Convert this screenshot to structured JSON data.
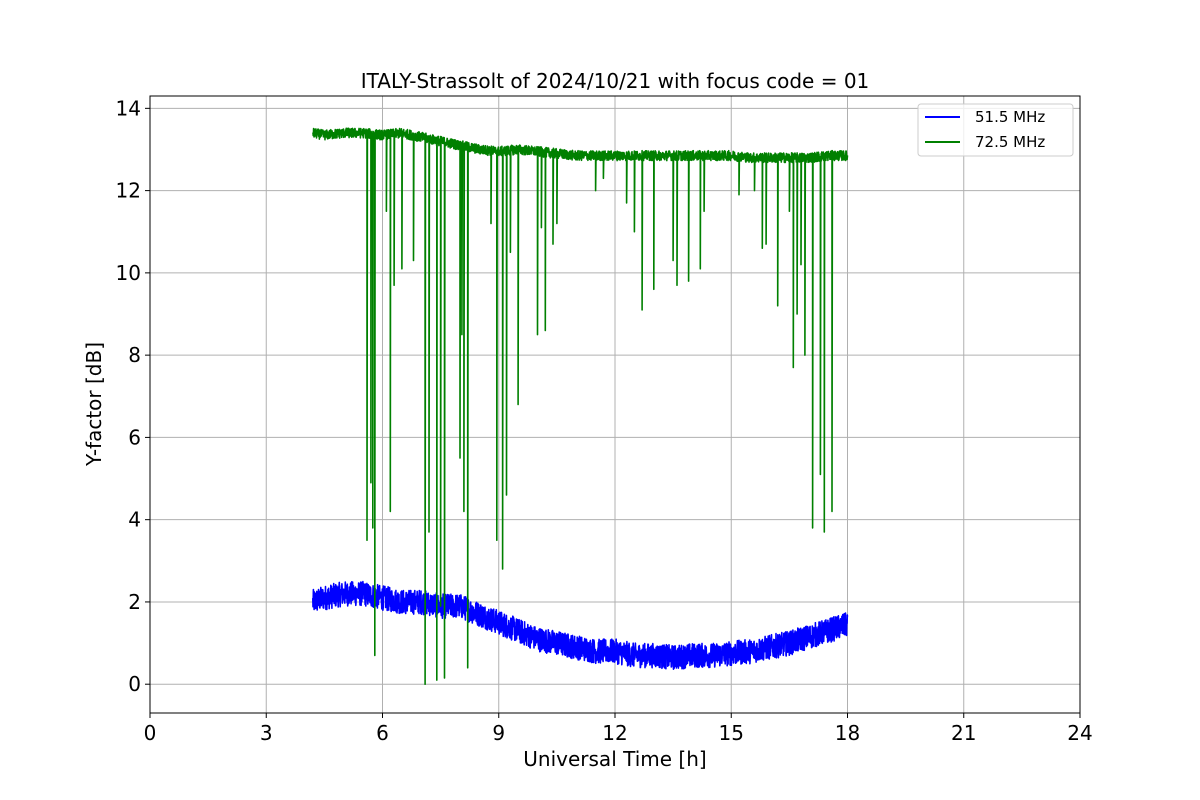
{
  "chart_data": {
    "type": "line",
    "title": "ITALY-Strassolt of 2024/10/21 with focus code = 01",
    "xlabel": "Universal Time [h]",
    "ylabel": "Y-factor [dB]",
    "xlim": [
      0,
      24
    ],
    "ylim": [
      -0.7,
      14.3
    ],
    "xticks": [
      0,
      3,
      6,
      9,
      12,
      15,
      18,
      21,
      24
    ],
    "yticks": [
      0,
      2,
      4,
      6,
      8,
      10,
      12,
      14
    ],
    "xtick_labels": [
      "0",
      "3",
      "6",
      "9",
      "12",
      "15",
      "18",
      "21",
      "24"
    ],
    "ytick_labels": [
      "0",
      "2",
      "4",
      "6",
      "8",
      "10",
      "12",
      "14"
    ],
    "grid": true,
    "legend": "top-right",
    "series": [
      {
        "name": "  51.5 MHz",
        "color": "#0000ff",
        "x": [
          4.2,
          4.5,
          5.0,
          5.5,
          6.0,
          6.5,
          7.0,
          7.5,
          8.0,
          8.5,
          9.0,
          9.5,
          10.0,
          10.5,
          11.0,
          11.5,
          12.0,
          12.5,
          13.0,
          13.5,
          14.0,
          14.5,
          15.0,
          15.5,
          16.0,
          16.5,
          17.0,
          17.5,
          18.0
        ],
        "y": [
          2.0,
          2.1,
          2.2,
          2.2,
          2.1,
          2.0,
          2.0,
          1.9,
          1.9,
          1.7,
          1.5,
          1.3,
          1.1,
          1.0,
          0.9,
          0.8,
          0.8,
          0.7,
          0.7,
          0.65,
          0.7,
          0.7,
          0.75,
          0.8,
          0.9,
          1.0,
          1.15,
          1.3,
          1.45
        ],
        "noise": 0.3
      },
      {
        "name": "  72.5 MHz",
        "color": "#008000",
        "x": [
          4.2,
          4.5,
          5.0,
          5.5,
          6.0,
          6.5,
          7.0,
          7.5,
          8.0,
          8.5,
          9.0,
          9.5,
          10.0,
          10.5,
          11.0,
          11.5,
          12.0,
          12.5,
          13.0,
          13.5,
          14.0,
          14.5,
          15.0,
          15.5,
          16.0,
          16.5,
          17.0,
          17.5,
          18.0
        ],
        "y": [
          13.4,
          13.35,
          13.4,
          13.4,
          13.35,
          13.4,
          13.3,
          13.2,
          13.1,
          13.0,
          12.95,
          13.0,
          12.95,
          12.9,
          12.85,
          12.85,
          12.85,
          12.85,
          12.85,
          12.85,
          12.85,
          12.85,
          12.85,
          12.8,
          12.8,
          12.8,
          12.8,
          12.85,
          12.85
        ],
        "noise": 0.12,
        "dips": [
          [
            5.6,
            3.5
          ],
          [
            5.7,
            4.9
          ],
          [
            5.75,
            3.8
          ],
          [
            5.8,
            0.7
          ],
          [
            6.1,
            11.5
          ],
          [
            6.2,
            4.2
          ],
          [
            6.3,
            9.7
          ],
          [
            6.5,
            10.1
          ],
          [
            6.8,
            10.3
          ],
          [
            7.1,
            0.0
          ],
          [
            7.2,
            3.7
          ],
          [
            7.4,
            0.1
          ],
          [
            7.5,
            1.9
          ],
          [
            7.6,
            0.15
          ],
          [
            8.0,
            5.5
          ],
          [
            8.05,
            8.5
          ],
          [
            8.1,
            4.2
          ],
          [
            8.2,
            0.4
          ],
          [
            8.8,
            11.2
          ],
          [
            8.95,
            3.5
          ],
          [
            9.1,
            2.8
          ],
          [
            9.2,
            4.6
          ],
          [
            9.3,
            10.5
          ],
          [
            9.5,
            6.8
          ],
          [
            10.0,
            8.5
          ],
          [
            10.1,
            11.1
          ],
          [
            10.2,
            8.6
          ],
          [
            10.4,
            10.7
          ],
          [
            10.5,
            11.2
          ],
          [
            11.5,
            12.0
          ],
          [
            11.7,
            12.3
          ],
          [
            12.3,
            11.7
          ],
          [
            12.5,
            11.0
          ],
          [
            12.7,
            9.1
          ],
          [
            13.0,
            9.6
          ],
          [
            13.5,
            10.3
          ],
          [
            13.6,
            9.7
          ],
          [
            13.9,
            9.8
          ],
          [
            14.2,
            10.1
          ],
          [
            14.3,
            11.5
          ],
          [
            15.2,
            11.9
          ],
          [
            15.6,
            12.0
          ],
          [
            15.8,
            10.6
          ],
          [
            15.9,
            10.7
          ],
          [
            16.2,
            9.2
          ],
          [
            16.5,
            11.5
          ],
          [
            16.6,
            7.7
          ],
          [
            16.7,
            9.0
          ],
          [
            16.8,
            10.2
          ],
          [
            16.9,
            8.0
          ],
          [
            17.1,
            3.8
          ],
          [
            17.3,
            5.1
          ],
          [
            17.4,
            3.7
          ],
          [
            17.6,
            4.2
          ]
        ]
      }
    ]
  }
}
